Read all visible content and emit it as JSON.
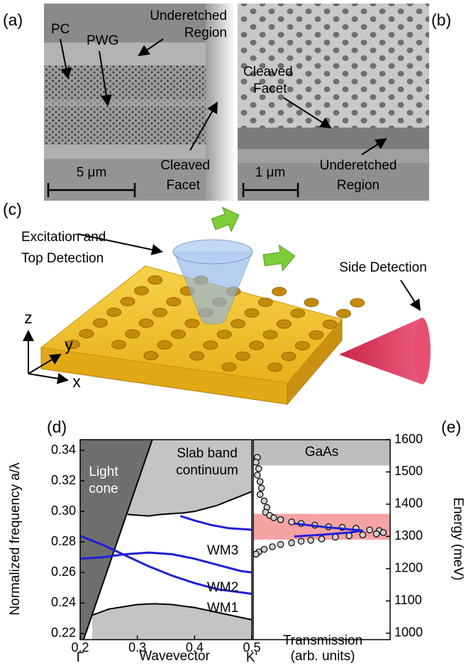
{
  "panels": {
    "a": {
      "label": "(a)",
      "pc": "PC",
      "pwg": "PWG",
      "underetched": [
        "Underetched",
        "Region"
      ],
      "facet": [
        "Cleaved",
        "Facet"
      ],
      "scale": "5 μm"
    },
    "b": {
      "label": "(b)",
      "facet": [
        "Cleaved",
        "Facet"
      ],
      "scale": "1 μm",
      "underetched": [
        "Underetched",
        "Region"
      ]
    },
    "c": {
      "label": "(c)",
      "excitation": [
        "Excitation and",
        "Top Detection"
      ],
      "side": "Side Detection",
      "axes": [
        "z",
        "y",
        "x"
      ]
    }
  },
  "chart_data": [
    {
      "type": "line",
      "label": "(d)",
      "ylabel": "Normalized frequency a/λ",
      "xlabel": "Wavevector",
      "xlim": [
        0.2,
        0.5
      ],
      "xticks": [
        0.2,
        0.3,
        0.4,
        0.5
      ],
      "symmetry_points": [
        {
          "value": 0.2,
          "label": "Γ"
        },
        {
          "value": 0.5,
          "label": "K'"
        }
      ],
      "ylim": [
        0.216,
        0.347
      ],
      "yticks": [
        0.22,
        0.24,
        0.26,
        0.28,
        {
          "value": 0.3,
          "label": "0.30"
        },
        0.32,
        0.34
      ],
      "region_labels": [
        "Light",
        "cone",
        "Slab band",
        "continuum"
      ],
      "mode_labels": [
        "WM3",
        "WM2",
        "WM1"
      ],
      "regions": [
        {
          "fill": "above",
          "color": "#c4c4c4",
          "x": [
            0.283,
            0.3,
            0.32,
            0.34,
            0.36,
            0.38,
            0.4,
            0.42,
            0.44,
            0.46,
            0.48,
            0.5
          ],
          "values": [
            0.298,
            0.2975,
            0.297,
            0.298,
            0.2985,
            0.299,
            0.3,
            0.302,
            0.304,
            0.307,
            0.31,
            0.313
          ]
        },
        {
          "fill": "below",
          "color": "#c4c4c4",
          "x": [
            0.221,
            0.25,
            0.3,
            0.33,
            0.36,
            0.4,
            0.45,
            0.5
          ],
          "values": [
            0.232,
            0.236,
            0.239,
            0.2395,
            0.239,
            0.237,
            0.233,
            0.229
          ]
        },
        {
          "fill": "left",
          "color": "#6e6e6e",
          "x": [
            0.206,
            0.326
          ],
          "values": [
            0.216,
            0.347
          ]
        }
      ],
      "series": [
        {
          "color": "#1f1fd6",
          "x": [
            0.2,
            0.24,
            0.28,
            0.32,
            0.36,
            0.4,
            0.44,
            0.48,
            0.5
          ],
          "values": [
            0.284,
            0.278,
            0.271,
            0.264,
            0.258,
            0.253,
            0.249,
            0.247,
            0.246
          ]
        },
        {
          "color": "#1f1fd6",
          "x": [
            0.2,
            0.24,
            0.28,
            0.32,
            0.36,
            0.4,
            0.44,
            0.48,
            0.5
          ],
          "values": [
            0.269,
            0.27,
            0.272,
            0.273,
            0.272,
            0.269,
            0.265,
            0.261,
            0.26
          ]
        },
        {
          "color": "#1f1fd6",
          "x": [
            0.375,
            0.4,
            0.43,
            0.46,
            0.5
          ],
          "values": [
            0.297,
            0.294,
            0.291,
            0.289,
            0.288
          ]
        }
      ]
    },
    {
      "type": "scatter",
      "label": "(e)",
      "ylabel": "Energy (meV)",
      "xlabel": [
        "Transmission",
        "(arb. units)"
      ],
      "xlim": [
        0,
        1
      ],
      "ylim": [
        980,
        1600
      ],
      "yticks": [
        1000,
        1100,
        1200,
        1300,
        1400,
        1500,
        1600
      ],
      "bands": [
        {
          "range": [
            1520,
            1600
          ],
          "color": "#bdbdbd",
          "label": "GaAs"
        },
        {
          "range": [
            1290,
            1370
          ],
          "color": "#f5a3a3"
        }
      ],
      "color": "#d0d0d0",
      "x": [
        0.03,
        0.02,
        0.04,
        0.03,
        0.05,
        0.06,
        0.05,
        0.08,
        0.1,
        0.09,
        0.12,
        0.15,
        0.2,
        0.28,
        0.35,
        0.45,
        0.55,
        0.65,
        0.75,
        0.85,
        0.92,
        0.95,
        0.9,
        0.8,
        0.7,
        0.6,
        0.5,
        0.42,
        0.35,
        0.28,
        0.2,
        0.14,
        0.08,
        0.04,
        0.02
      ],
      "values": [
        1545,
        1530,
        1510,
        1490,
        1470,
        1450,
        1430,
        1410,
        1390,
        1375,
        1365,
        1358,
        1352,
        1345,
        1340,
        1335,
        1330,
        1328,
        1325,
        1320,
        1318,
        1312,
        1308,
        1305,
        1302,
        1298,
        1292,
        1288,
        1285,
        1280,
        1275,
        1268,
        1260,
        1252,
        1245
      ],
      "curve": {
        "color": "#1f1fd6",
        "x": [
          0.3,
          0.5,
          0.7,
          0.8,
          0.7,
          0.5,
          0.3
        ],
        "values": [
          1340,
          1330,
          1322,
          1318,
          1312,
          1305,
          1300
        ]
      }
    }
  ]
}
